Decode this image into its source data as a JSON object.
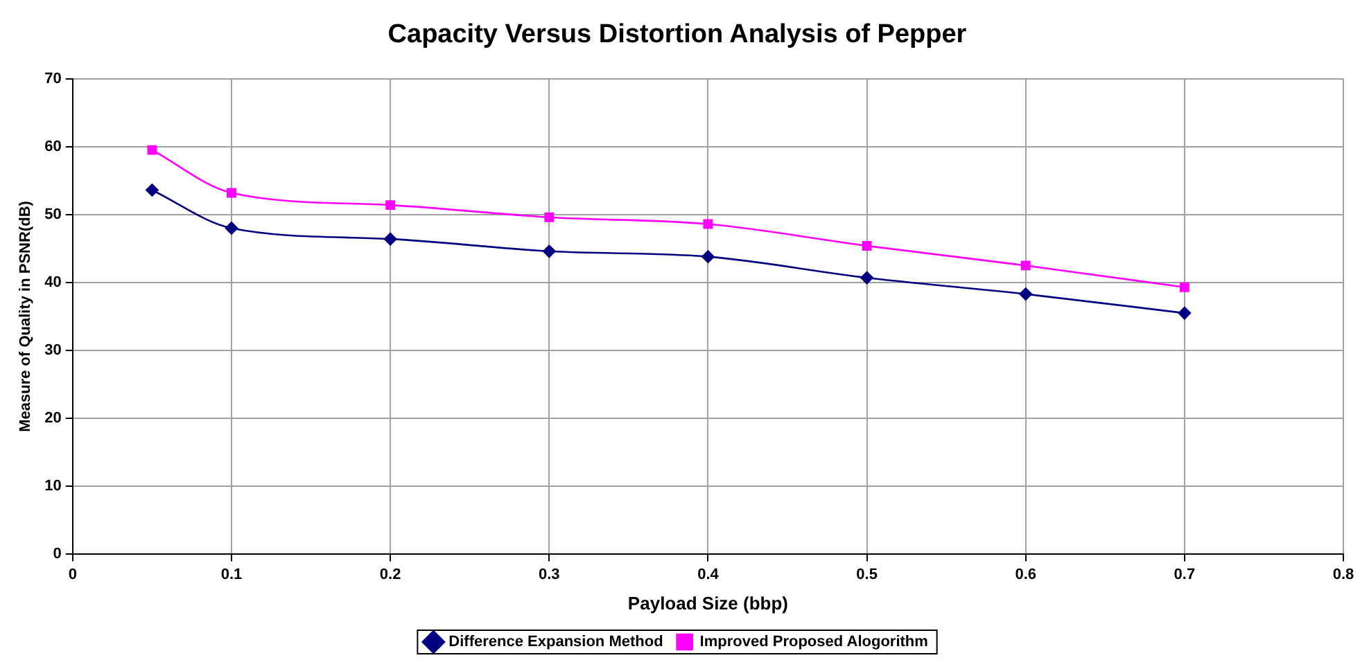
{
  "chart_data": {
    "type": "line",
    "title": "Capacity Versus Distortion Analysis of Pepper",
    "xlabel": "Payload Size (bbp)",
    "ylabel": "Measure of Quality in PSNR(dB)",
    "x": [
      0.05,
      0.1,
      0.2,
      0.3,
      0.4,
      0.5,
      0.6,
      0.7
    ],
    "series": [
      {
        "name": "Difference Expansion Method",
        "color": "#000080",
        "marker": "diamond",
        "values": [
          53.6,
          48.0,
          46.4,
          44.6,
          43.8,
          40.7,
          38.3,
          35.5
        ]
      },
      {
        "name": "Improved Proposed Alogorithm",
        "color": "#ff00ff",
        "marker": "square",
        "values": [
          59.5,
          53.2,
          51.4,
          49.6,
          48.6,
          45.4,
          42.5,
          39.3
        ]
      }
    ],
    "xlim": [
      0,
      0.8
    ],
    "xticks": [
      0,
      0.1,
      0.2,
      0.3,
      0.4,
      0.5,
      0.6,
      0.7,
      0.8
    ],
    "ylim": [
      0,
      70
    ],
    "yticks": [
      0,
      10,
      20,
      30,
      40,
      50,
      60,
      70
    ],
    "grid": true,
    "legend": "bottom",
    "line_style": "solid"
  }
}
